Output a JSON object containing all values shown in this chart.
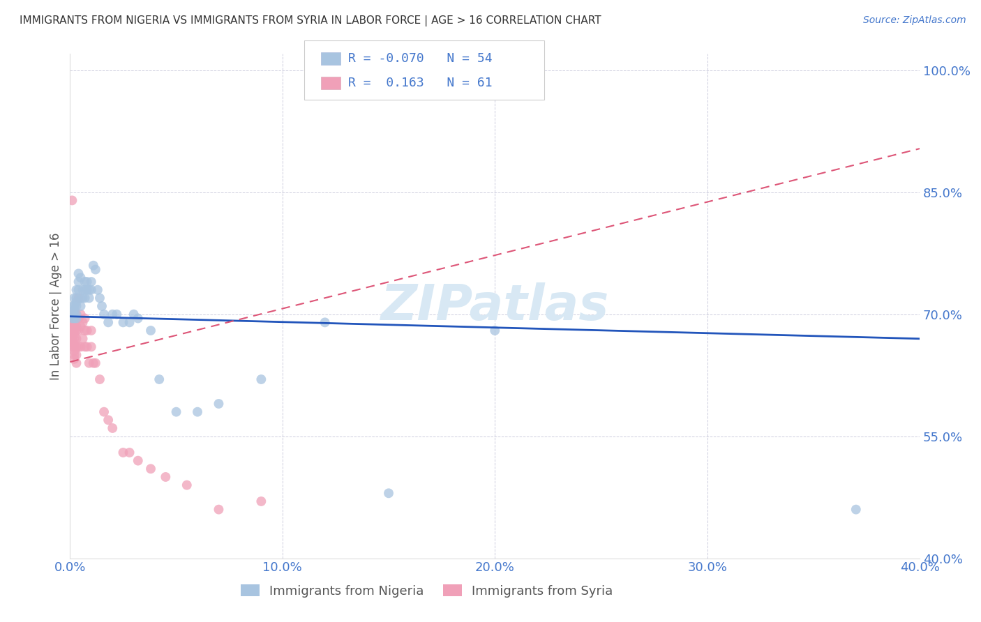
{
  "title": "IMMIGRANTS FROM NIGERIA VS IMMIGRANTS FROM SYRIA IN LABOR FORCE | AGE > 16 CORRELATION CHART",
  "source": "Source: ZipAtlas.com",
  "ylabel": "In Labor Force | Age > 16",
  "xlim": [
    0.0,
    0.4
  ],
  "ylim": [
    0.4,
    1.02
  ],
  "xtick_labels": [
    "0.0%",
    "10.0%",
    "20.0%",
    "30.0%",
    "40.0%"
  ],
  "xtick_vals": [
    0.0,
    0.1,
    0.2,
    0.3,
    0.4
  ],
  "ytick_labels": [
    "100.0%",
    "85.0%",
    "70.0%",
    "55.0%",
    "40.0%"
  ],
  "ytick_vals": [
    1.0,
    0.85,
    0.7,
    0.55,
    0.4
  ],
  "nigeria_R": -0.07,
  "nigeria_N": 54,
  "syria_R": 0.163,
  "syria_N": 61,
  "nigeria_color": "#a8c4e0",
  "syria_color": "#f0a0b8",
  "nigeria_line_color": "#2255bb",
  "syria_line_color": "#dd5577",
  "background_color": "#ffffff",
  "grid_color": "#ccccdd",
  "title_color": "#333333",
  "axis_label_color": "#4477cc",
  "watermark_color": "#d8e8f4",
  "nigeria_scatter_x": [
    0.001,
    0.001,
    0.001,
    0.002,
    0.002,
    0.002,
    0.002,
    0.002,
    0.003,
    0.003,
    0.003,
    0.003,
    0.003,
    0.003,
    0.004,
    0.004,
    0.004,
    0.005,
    0.005,
    0.005,
    0.006,
    0.006,
    0.007,
    0.007,
    0.007,
    0.008,
    0.008,
    0.009,
    0.009,
    0.01,
    0.01,
    0.011,
    0.012,
    0.013,
    0.014,
    0.015,
    0.016,
    0.018,
    0.02,
    0.022,
    0.025,
    0.028,
    0.03,
    0.032,
    0.038,
    0.042,
    0.05,
    0.06,
    0.07,
    0.09,
    0.12,
    0.15,
    0.2,
    0.37
  ],
  "nigeria_scatter_y": [
    0.7,
    0.695,
    0.71,
    0.7,
    0.71,
    0.72,
    0.695,
    0.705,
    0.72,
    0.73,
    0.715,
    0.7,
    0.71,
    0.695,
    0.74,
    0.75,
    0.73,
    0.72,
    0.745,
    0.71,
    0.73,
    0.72,
    0.74,
    0.73,
    0.72,
    0.73,
    0.74,
    0.73,
    0.72,
    0.73,
    0.74,
    0.76,
    0.755,
    0.73,
    0.72,
    0.71,
    0.7,
    0.69,
    0.7,
    0.7,
    0.69,
    0.69,
    0.7,
    0.695,
    0.68,
    0.62,
    0.58,
    0.58,
    0.59,
    0.62,
    0.69,
    0.48,
    0.68,
    0.46
  ],
  "syria_scatter_x": [
    0.001,
    0.001,
    0.001,
    0.001,
    0.001,
    0.001,
    0.001,
    0.001,
    0.001,
    0.001,
    0.002,
    0.002,
    0.002,
    0.002,
    0.002,
    0.002,
    0.002,
    0.002,
    0.002,
    0.002,
    0.002,
    0.002,
    0.003,
    0.003,
    0.003,
    0.003,
    0.003,
    0.003,
    0.003,
    0.003,
    0.004,
    0.004,
    0.004,
    0.004,
    0.005,
    0.005,
    0.005,
    0.006,
    0.006,
    0.007,
    0.007,
    0.007,
    0.008,
    0.008,
    0.009,
    0.01,
    0.01,
    0.011,
    0.012,
    0.014,
    0.016,
    0.018,
    0.02,
    0.025,
    0.028,
    0.032,
    0.038,
    0.045,
    0.055,
    0.07,
    0.09
  ],
  "syria_scatter_y": [
    0.84,
    0.7,
    0.695,
    0.69,
    0.685,
    0.68,
    0.675,
    0.67,
    0.665,
    0.66,
    0.7,
    0.695,
    0.69,
    0.685,
    0.68,
    0.675,
    0.67,
    0.665,
    0.66,
    0.655,
    0.65,
    0.645,
    0.7,
    0.695,
    0.685,
    0.68,
    0.67,
    0.66,
    0.65,
    0.64,
    0.72,
    0.695,
    0.68,
    0.66,
    0.7,
    0.685,
    0.66,
    0.69,
    0.67,
    0.695,
    0.68,
    0.66,
    0.68,
    0.66,
    0.64,
    0.68,
    0.66,
    0.64,
    0.64,
    0.62,
    0.58,
    0.57,
    0.56,
    0.53,
    0.53,
    0.52,
    0.51,
    0.5,
    0.49,
    0.46,
    0.47
  ],
  "legend_nigeria_text": "R = -0.070   N = 54",
  "legend_syria_text": "R =  0.163   N = 61",
  "legend_nigeria_label": "Immigrants from Nigeria",
  "legend_syria_label": "Immigrants from Syria"
}
